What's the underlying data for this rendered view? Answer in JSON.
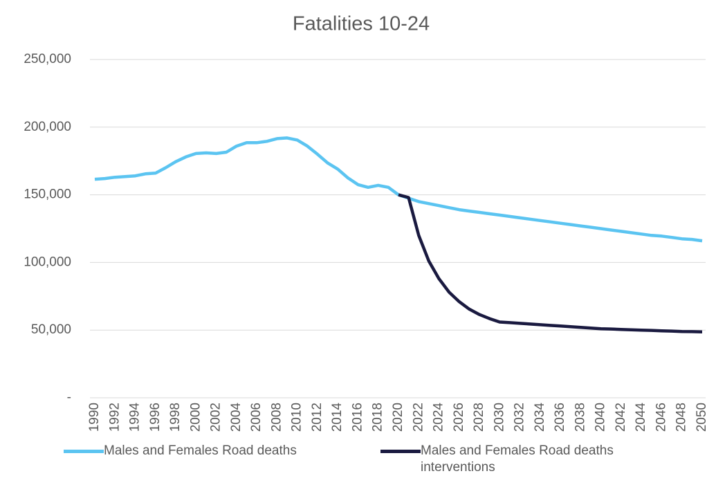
{
  "chart_data": {
    "type": "line",
    "title": "Fatalities 10-24",
    "x": [
      1990,
      1991,
      1992,
      1993,
      1994,
      1995,
      1996,
      1997,
      1998,
      1999,
      2000,
      2001,
      2002,
      2003,
      2004,
      2005,
      2006,
      2007,
      2008,
      2009,
      2010,
      2011,
      2012,
      2013,
      2014,
      2015,
      2016,
      2017,
      2018,
      2019,
      2020,
      2021,
      2022,
      2023,
      2024,
      2025,
      2026,
      2027,
      2028,
      2029,
      2030,
      2031,
      2032,
      2033,
      2034,
      2035,
      2036,
      2037,
      2038,
      2039,
      2040,
      2041,
      2042,
      2043,
      2044,
      2045,
      2046,
      2047,
      2048,
      2049,
      2050
    ],
    "series": [
      {
        "name": "Males and Females Road deaths",
        "color": "#5bc4f1",
        "values": [
          161500,
          162000,
          163000,
          163500,
          164000,
          165500,
          166000,
          170000,
          174500,
          178000,
          180500,
          181000,
          180500,
          181500,
          186000,
          188500,
          188500,
          189500,
          191500,
          192000,
          190500,
          186000,
          180000,
          173500,
          169000,
          162500,
          157500,
          155500,
          157000,
          155500,
          150000,
          147500,
          145000,
          143500,
          142000,
          140500,
          139000,
          138000,
          137000,
          136000,
          135000,
          134000,
          133000,
          132000,
          131000,
          130000,
          129000,
          128000,
          127000,
          126000,
          125000,
          124000,
          123000,
          122000,
          121000,
          120000,
          119500,
          118500,
          117500,
          117000,
          116000
        ]
      },
      {
        "name": "Males and Females Road deaths interventions",
        "color": "#1a1a40",
        "values": [
          null,
          null,
          null,
          null,
          null,
          null,
          null,
          null,
          null,
          null,
          null,
          null,
          null,
          null,
          null,
          null,
          null,
          null,
          null,
          null,
          null,
          null,
          null,
          null,
          null,
          null,
          null,
          null,
          null,
          null,
          150000,
          148000,
          120000,
          101000,
          88000,
          78000,
          71000,
          65500,
          61500,
          58500,
          56000,
          55500,
          55000,
          54500,
          54000,
          53500,
          53000,
          52500,
          52000,
          51500,
          51000,
          50800,
          50500,
          50200,
          50000,
          49800,
          49500,
          49300,
          49000,
          48900,
          48700
        ]
      }
    ],
    "xlim": [
      1990,
      2050
    ],
    "xticks": [
      1990,
      1992,
      1994,
      1996,
      1998,
      2000,
      2002,
      2004,
      2006,
      2008,
      2010,
      2012,
      2014,
      2016,
      2018,
      2020,
      2022,
      2024,
      2026,
      2028,
      2030,
      2032,
      2034,
      2036,
      2038,
      2040,
      2042,
      2044,
      2046,
      2048,
      2050
    ],
    "ylim": [
      0,
      250000
    ],
    "yticks": [
      {
        "value": 0,
        "label": "-"
      },
      {
        "value": 50000,
        "label": "50,000"
      },
      {
        "value": 100000,
        "label": "100,000"
      },
      {
        "value": 150000,
        "label": "150,000"
      },
      {
        "value": 200000,
        "label": "200,000"
      },
      {
        "value": 250000,
        "label": "250,000"
      }
    ],
    "grid": true
  }
}
